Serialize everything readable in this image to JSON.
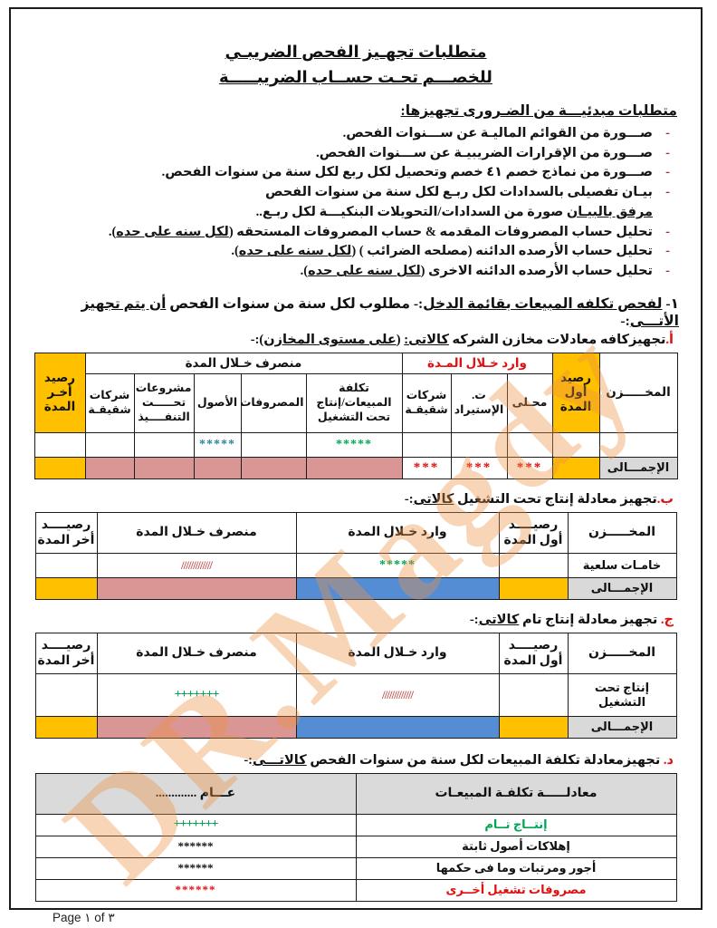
{
  "colors": {
    "cell_orange": "#FFC000",
    "cell_pink": "#D99694",
    "cell_blue": "#548DD4",
    "cell_gray": "#D9D9D9",
    "accent_red": "#E01010",
    "accent_green": "#00A651",
    "accent_teal": "#2E849C",
    "accent_maroon": "#C0504D",
    "watermark_orange": "#EC9042"
  },
  "watermark": {
    "text": "DR.Magdy"
  },
  "title": {
    "line1": "متطلبات تجهـيز الفحص الضريبـي",
    "line2": "للخصـــم تحـت حســاب الضريبـــــة"
  },
  "intro": {
    "heading": "متطلبات مبدئيـــة من الضـرورى تجهيزها:",
    "bullets": [
      {
        "segments": [
          {
            "t": "صـــورة من القوائم الماليـة عن ســـنوات الفحص."
          }
        ]
      },
      {
        "segments": [
          {
            "t": "صـــورة من الإقرارات الضريبيـة عن ســـنوات الفحص."
          }
        ]
      },
      {
        "segments": [
          {
            "t": "صـــورة من نماذج خصم ٤١ خصم وتحصيل لكل ربع لكل سنة من سنوات الفحص."
          }
        ]
      },
      {
        "segments": [
          {
            "t": "بيـان تفصيلى بالسدادات لكل ربـع لكل سنة من سنوات الفحص"
          },
          {
            "br": true
          },
          {
            "t": "مرفق بالبيـان",
            "u": true
          },
          {
            "t": " صورة من السدادات/التحويلات البنكيـــة لكل ربـع.."
          }
        ]
      },
      {
        "segments": [
          {
            "t": "تحليل حساب المصروفات المقدمه & حساب المصروفات المستحقه ("
          },
          {
            "t": "لكل سنه على حده",
            "u": true
          },
          {
            "t": ")."
          }
        ]
      },
      {
        "segments": [
          {
            "t": "تحليل حساب الأرصده الدائنه (مصلحه الضرائب ) ("
          },
          {
            "t": "لكل سنه على حده",
            "u": true
          },
          {
            "t": ")."
          }
        ]
      },
      {
        "segments": [
          {
            "t": "تحليل حساب الأرصده الدائنه الاخرى ("
          },
          {
            "t": "لكل سنه على حده",
            "u": true
          },
          {
            "t": ")."
          }
        ]
      }
    ]
  },
  "section1": {
    "segments": [
      {
        "t": "١- "
      },
      {
        "t": "لفحص تكلفه المبيعات بقائمة الدخل",
        "u": true
      },
      {
        "t": ":-   مطلوب لكل سنة من سنوات الفحص "
      },
      {
        "t": "أن يتم تجهيز الأتـــى",
        "u": true
      },
      {
        "t": ":-"
      }
    ]
  },
  "item_a": {
    "segments": [
      {
        "t": "أ.",
        "r": true
      },
      {
        "t": "تجهيزكافه معادلات مخازن الشركه "
      },
      {
        "t": "كالاتى:",
        "u": true
      },
      {
        "t": " ("
      },
      {
        "t": "على مستوى المخازن",
        "u": true
      },
      {
        "t": "):-"
      }
    ]
  },
  "item_b": {
    "segments": [
      {
        "t": "ب.",
        "r": true
      },
      {
        "t": "تجهيز معادلة إنتاج تحت التشغيل "
      },
      {
        "t": "كالاتى",
        "u": true
      },
      {
        "t": ":-"
      }
    ]
  },
  "item_c": {
    "segments": [
      {
        "t": "ج.",
        "r": true
      },
      {
        "t": " تجهيز معادلة إنتاج تام "
      },
      {
        "t": "كالاتى",
        "u": true
      },
      {
        "t": ":-"
      }
    ]
  },
  "item_d": {
    "segments": [
      {
        "t": "د. ",
        "r": true
      },
      {
        "t": "تجهيزمعادلة تكلفة المبيعات لكل سنة من سنوات الفحص "
      },
      {
        "t": "كالاتـــى",
        "u": true
      },
      {
        "t": ":-"
      }
    ]
  },
  "table1": {
    "h": {
      "makhzan": "المخـــــزن",
      "rased_awal": "رصيد\nأول\nالمدة",
      "wared": "وارد خـلال المـدة",
      "monsarf": "منصرف خـلال المدة",
      "rased_akher": "رصيد\nأخـر\nالمدة",
      "sub": [
        "محـلى",
        "ت.\nالإستيراد",
        "شركات\nشقيقـة",
        "تكلفة\nالمبيعات/إنتاج\nتحت التشغيل",
        "المصروفات",
        "الأصول",
        "مشروعات\nتحـــــت\nالتنفــــيذ",
        "شركات\nشقيقـة"
      ]
    },
    "blank": {
      "kolfa": "*****",
      "osool": "*****"
    },
    "total": {
      "label": "الإجمـــالى",
      "mahaly": "***",
      "estirad": "***",
      "shaqiqa": "***"
    }
  },
  "table2": {
    "h": {
      "makhzan": "المخـــــزن",
      "rased_awal": "رصيــــد\nأول المدة",
      "wared": "وارد خـلال المدة",
      "monsarf": "منصرف خـلال المدة",
      "rased_akher": "رصيــــد\nأخر المدة"
    },
    "row": {
      "label": "خامـات سلعية",
      "wared": "*****",
      "monsarf": "/////////////"
    },
    "total": {
      "label": "الإجمـــالى"
    }
  },
  "table3": {
    "h": {
      "makhzan": "المخـــــزن",
      "rased_awal": "رصيــــد\nأول المدة",
      "wared": "وارد خـلال المدة",
      "monsarf": "منصرف خـلال المدة",
      "rased_akher": "رصيــــد\nأخر المدة"
    },
    "row": {
      "label": "إنتاج تحت\nالتشغيل",
      "wared": "/////////////",
      "monsarf": "+++++++"
    },
    "total": {
      "label": "الإجمـــالى"
    }
  },
  "table4": {
    "h": {
      "right": "معادلـــــة تكلفـة المبيعـات",
      "left": "عـــام ............."
    },
    "rows": [
      {
        "label": "إنتــاج تــام",
        "value": "+++++++"
      },
      {
        "label": "إهلاكات أصول ثابتة",
        "value": "******"
      },
      {
        "label": "أجور ومرتبات وما فى حكمها",
        "value": "******"
      },
      {
        "label": "مصروفات تشغيل أخــرى",
        "value": "******"
      }
    ]
  },
  "page": {
    "footer": "Page ١ of ٣"
  }
}
